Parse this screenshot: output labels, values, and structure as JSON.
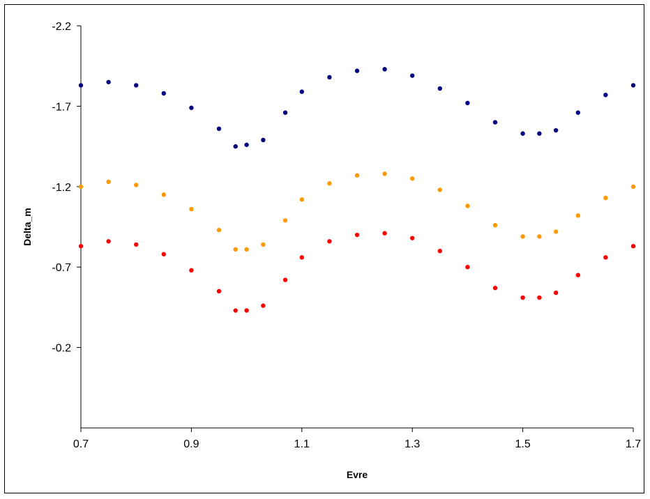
{
  "chart_data": {
    "type": "scatter",
    "title": "",
    "xlabel": "Evre",
    "ylabel": "Delta_m",
    "xlim": [
      0.7,
      1.7
    ],
    "ylim": [
      0.3,
      -2.2
    ],
    "y_reversed": true,
    "x_ticks": [
      "0.7",
      "0.9",
      "1.1",
      "1.3",
      "1.5",
      "1.7"
    ],
    "y_ticks": [
      "-2.2",
      "-1.7",
      "-1.2",
      "-0.7",
      "-0.2"
    ],
    "grid": false,
    "legend": "none",
    "series": [
      {
        "color": "#000080",
        "x": [
          0.7,
          0.75,
          0.8,
          0.85,
          0.9,
          0.95,
          0.98,
          1.0,
          1.03,
          1.07,
          1.1,
          1.15,
          1.2,
          1.25,
          1.3,
          1.35,
          1.4,
          1.45,
          1.5,
          1.53,
          1.56,
          1.6,
          1.65,
          1.7
        ],
        "y": [
          -1.83,
          -1.85,
          -1.83,
          -1.78,
          -1.69,
          -1.56,
          -1.45,
          -1.46,
          -1.49,
          -1.66,
          -1.79,
          -1.88,
          -1.92,
          -1.93,
          -1.89,
          -1.81,
          -1.72,
          -1.6,
          -1.53,
          -1.53,
          -1.55,
          -1.66,
          -1.77,
          -1.83
        ]
      },
      {
        "color": "#FF9900",
        "x": [
          0.7,
          0.75,
          0.8,
          0.85,
          0.9,
          0.95,
          0.98,
          1.0,
          1.03,
          1.07,
          1.1,
          1.15,
          1.2,
          1.25,
          1.3,
          1.35,
          1.4,
          1.45,
          1.5,
          1.53,
          1.56,
          1.6,
          1.65,
          1.7
        ],
        "y": [
          -1.2,
          -1.23,
          -1.21,
          -1.15,
          -1.06,
          -0.93,
          -0.81,
          -0.81,
          -0.84,
          -0.99,
          -1.12,
          -1.22,
          -1.27,
          -1.28,
          -1.25,
          -1.18,
          -1.08,
          -0.96,
          -0.89,
          -0.89,
          -0.92,
          -1.02,
          -1.13,
          -1.2
        ]
      },
      {
        "color": "#FF0000",
        "x": [
          0.7,
          0.75,
          0.8,
          0.85,
          0.9,
          0.95,
          0.98,
          1.0,
          1.03,
          1.07,
          1.1,
          1.15,
          1.2,
          1.25,
          1.3,
          1.35,
          1.4,
          1.45,
          1.5,
          1.53,
          1.56,
          1.6,
          1.65,
          1.7
        ],
        "y": [
          -0.83,
          -0.86,
          -0.84,
          -0.78,
          -0.68,
          -0.55,
          -0.43,
          -0.43,
          -0.46,
          -0.62,
          -0.76,
          -0.86,
          -0.9,
          -0.91,
          -0.88,
          -0.8,
          -0.7,
          -0.57,
          -0.51,
          -0.51,
          -0.54,
          -0.65,
          -0.76,
          -0.83
        ]
      }
    ]
  }
}
